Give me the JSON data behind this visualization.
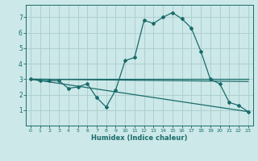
{
  "title": "",
  "xlabel": "Humidex (Indice chaleur)",
  "background_color": "#cce8e8",
  "grid_color": "#aacccc",
  "line_color": "#1a6b6b",
  "xlim": [
    -0.5,
    23.5
  ],
  "ylim": [
    0,
    7.8
  ],
  "yticks": [
    1,
    2,
    3,
    4,
    5,
    6,
    7
  ],
  "xticks": [
    0,
    1,
    2,
    3,
    4,
    5,
    6,
    7,
    8,
    9,
    10,
    11,
    12,
    13,
    14,
    15,
    16,
    17,
    18,
    19,
    20,
    21,
    22,
    23
  ],
  "series_main": {
    "x": [
      0,
      1,
      2,
      3,
      4,
      5,
      6,
      7,
      8,
      9,
      10,
      11,
      12,
      13,
      14,
      15,
      16,
      17,
      18,
      19,
      20,
      21,
      22,
      23
    ],
    "y": [
      3.0,
      2.9,
      2.9,
      2.9,
      2.4,
      2.5,
      2.7,
      1.8,
      1.2,
      2.3,
      4.2,
      4.4,
      6.8,
      6.6,
      7.0,
      7.3,
      6.9,
      6.3,
      4.8,
      3.0,
      2.7,
      1.5,
      1.3,
      0.9
    ]
  },
  "series_lines": [
    {
      "x": [
        0,
        23
      ],
      "y": [
        3.0,
        3.0
      ]
    },
    {
      "x": [
        0,
        23
      ],
      "y": [
        3.0,
        2.85
      ]
    },
    {
      "x": [
        0,
        23
      ],
      "y": [
        3.0,
        0.9
      ]
    }
  ],
  "figsize": [
    3.2,
    2.0
  ],
  "dpi": 100
}
